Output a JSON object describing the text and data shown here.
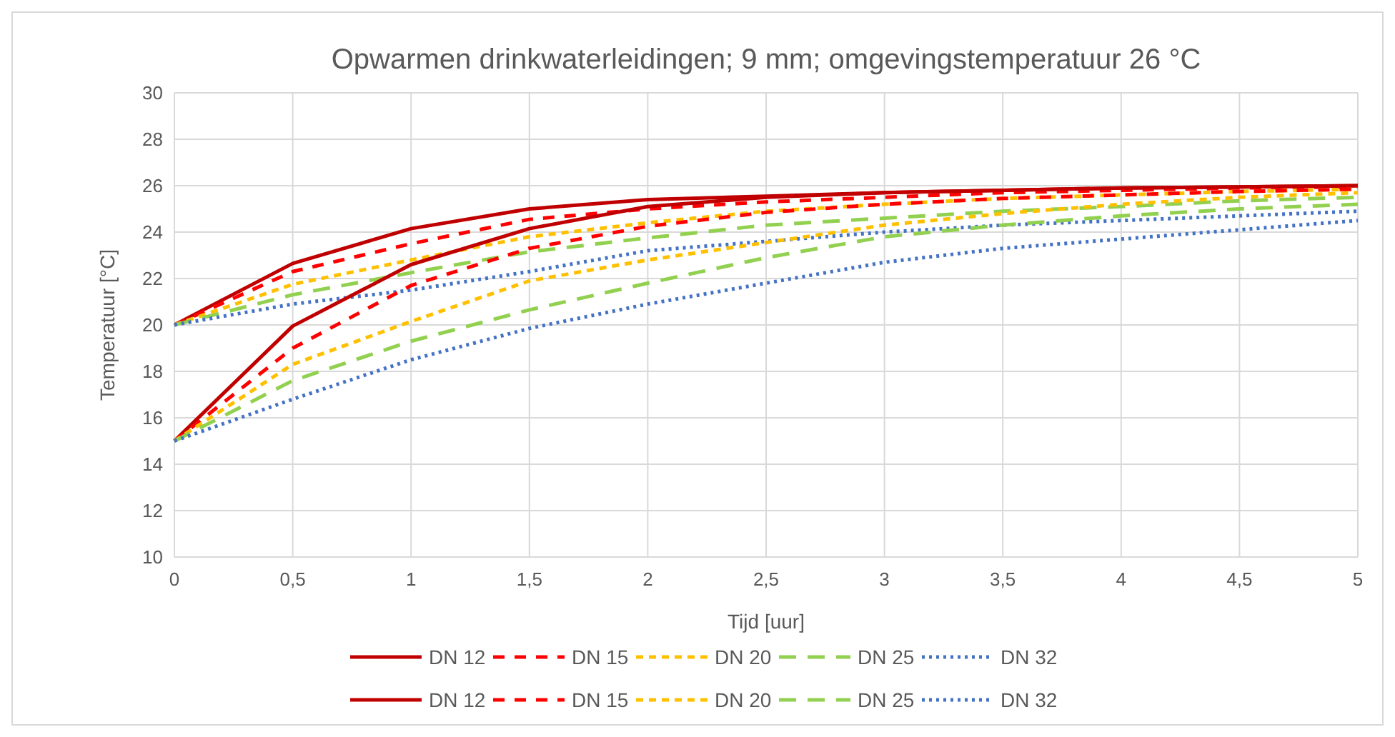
{
  "chart_data": {
    "type": "line",
    "title": "Opwarmen drinkwaterleidingen; 9 mm; omgevingstemperatuur 26 °C",
    "xlabel": "Tijd [uur]",
    "ylabel": "Temperatuur  [°C]",
    "x": [
      0,
      0.5,
      1,
      1.5,
      2,
      2.5,
      3,
      3.5,
      4,
      4.5,
      5
    ],
    "xlim": [
      0,
      5
    ],
    "ylim": [
      10,
      30
    ],
    "xticks": [
      0,
      {
        "value": 0.5,
        "label": "0,5"
      },
      1,
      {
        "value": 1.5,
        "label": "1,5"
      },
      2,
      {
        "value": 2.5,
        "label": "2,5"
      },
      3,
      {
        "value": 3.5,
        "label": "3,5"
      },
      4,
      {
        "value": 4.5,
        "label": "4,5"
      },
      5
    ],
    "yticks": [
      10,
      12,
      14,
      16,
      18,
      20,
      22,
      24,
      26,
      28,
      30
    ],
    "grid": true,
    "legend": "bottom",
    "marker": "none",
    "series": [
      {
        "name": "DN 12",
        "color": "#c00000",
        "line_style": "solid",
        "values": [
          20,
          22.65,
          24.15,
          25.0,
          25.4,
          25.55,
          25.7,
          25.8,
          25.9,
          25.95,
          26
        ]
      },
      {
        "name": "DN 15",
        "color": "#ff0000",
        "line_style": "dashed",
        "values": [
          20,
          22.3,
          23.5,
          24.55,
          25.0,
          25.3,
          25.5,
          25.7,
          25.8,
          25.9,
          25.95
        ]
      },
      {
        "name": "DN 20",
        "color": "#ffc000",
        "line_style": "dashed",
        "values": [
          20,
          21.75,
          22.8,
          23.8,
          24.4,
          24.9,
          25.2,
          25.45,
          25.6,
          25.75,
          25.85
        ]
      },
      {
        "name": "DN 25",
        "color": "#92d050",
        "line_style": "dashed",
        "values": [
          20,
          21.3,
          22.25,
          23.15,
          23.75,
          24.3,
          24.6,
          24.9,
          25.1,
          25.35,
          25.5
        ]
      },
      {
        "name": "DN 32",
        "color": "#4472c4",
        "line_style": "dotted",
        "values": [
          20,
          20.9,
          21.5,
          22.3,
          23.2,
          23.6,
          24.0,
          24.3,
          24.5,
          24.7,
          24.9
        ]
      },
      {
        "name": "DN 12",
        "color": "#c00000",
        "line_style": "solid",
        "values": [
          15,
          19.95,
          22.6,
          24.15,
          25.1,
          25.5,
          25.7,
          25.8,
          25.9,
          25.95,
          26
        ]
      },
      {
        "name": "DN 15",
        "color": "#ff0000",
        "line_style": "dashed",
        "values": [
          15,
          19.0,
          21.7,
          23.3,
          24.25,
          24.85,
          25.2,
          25.45,
          25.6,
          25.75,
          25.85
        ]
      },
      {
        "name": "DN 20",
        "color": "#ffc000",
        "line_style": "dashed",
        "values": [
          15,
          18.3,
          20.15,
          21.9,
          22.8,
          23.55,
          24.3,
          24.8,
          25.2,
          25.5,
          25.7
        ]
      },
      {
        "name": "DN 25",
        "color": "#92d050",
        "line_style": "dashed",
        "values": [
          15,
          17.6,
          19.3,
          20.65,
          21.8,
          22.9,
          23.8,
          24.3,
          24.7,
          25.0,
          25.2
        ]
      },
      {
        "name": "DN 32",
        "color": "#4472c4",
        "line_style": "dotted",
        "values": [
          15,
          16.8,
          18.5,
          19.85,
          20.9,
          21.8,
          22.7,
          23.3,
          23.7,
          24.1,
          24.5
        ]
      }
    ]
  }
}
